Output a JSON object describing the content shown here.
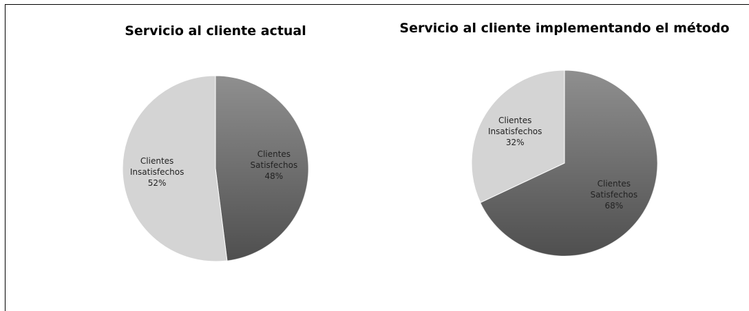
{
  "chart_data": [
    {
      "type": "pie",
      "title": "Servicio al cliente actual",
      "categories": [
        "Clientes Satisfechos",
        "Clientes Insatisfechos"
      ],
      "values": [
        48,
        52
      ],
      "value_labels": [
        "48%",
        "52%"
      ],
      "colors": [
        "#8f8f8f",
        "#d4d4d4"
      ]
    },
    {
      "type": "pie",
      "title": "Servicio al cliente implementando el método",
      "categories": [
        "Clientes Satisfechos",
        "Clientes Insatisfechos"
      ],
      "values": [
        68,
        32
      ],
      "value_labels": [
        "68%",
        "32%"
      ],
      "colors": [
        "#8f8f8f",
        "#d4d4d4"
      ]
    }
  ]
}
